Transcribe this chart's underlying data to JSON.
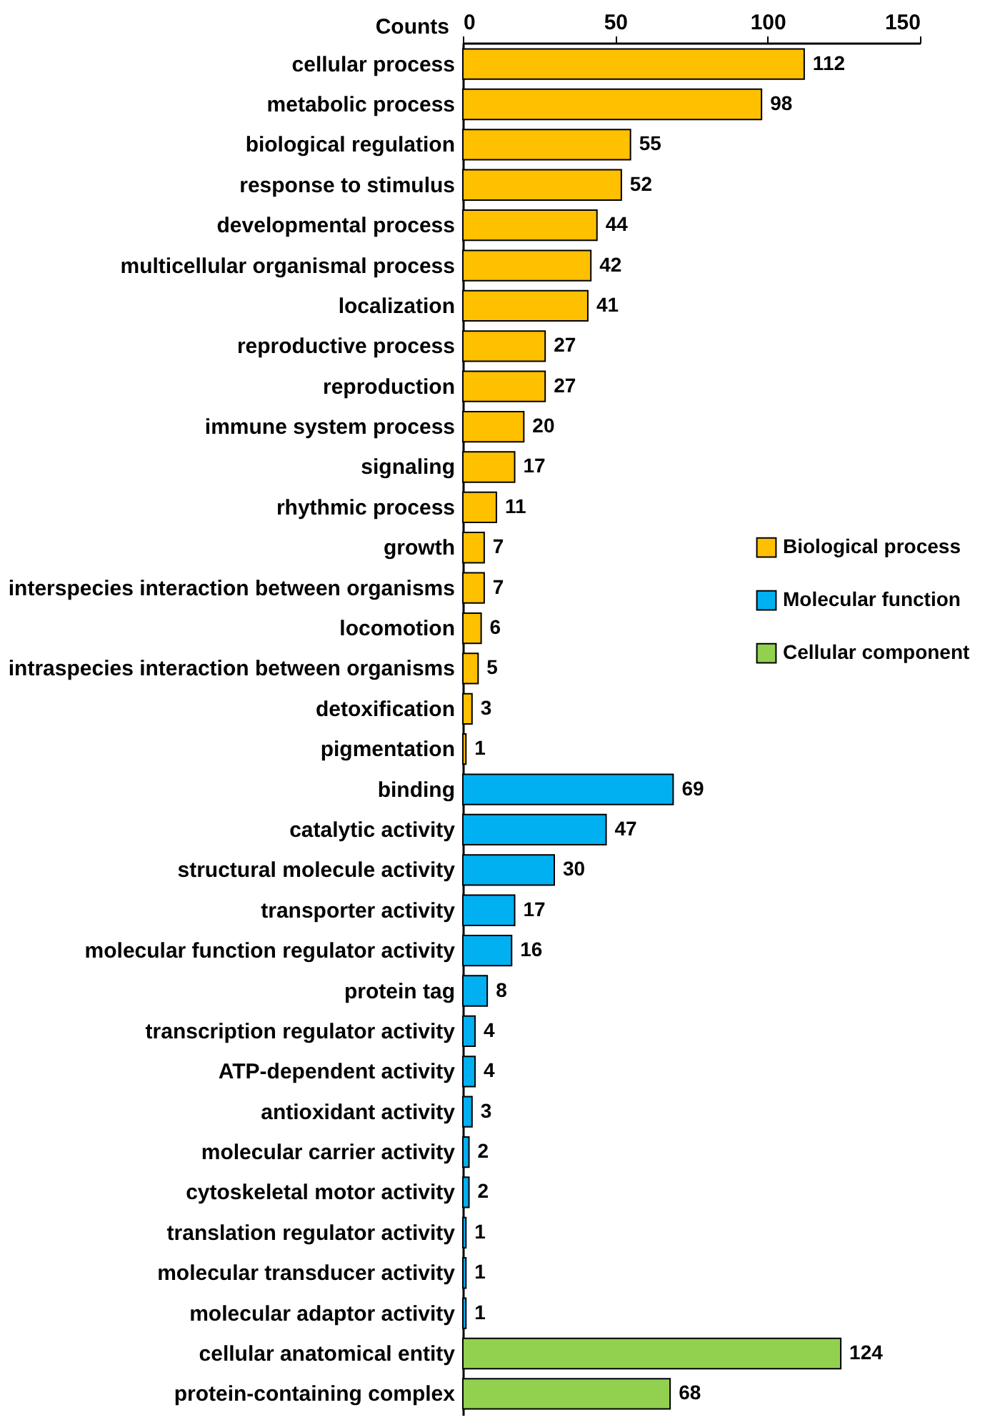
{
  "chart_data": {
    "type": "bar",
    "orientation": "horizontal",
    "xlabel": "Counts",
    "categories": [
      "cellular process",
      "metabolic process",
      "biological regulation",
      "response to stimulus",
      "developmental process",
      "multicellular organismal process",
      "localization",
      "reproductive process",
      "reproduction",
      "immune system process",
      "signaling",
      "rhythmic process",
      "growth",
      "interspecies interaction between organisms",
      "locomotion",
      "intraspecies interaction between organisms",
      "detoxification",
      "pigmentation",
      "binding",
      "catalytic activity",
      "structural molecule activity",
      "transporter activity",
      "molecular function regulator activity",
      "protein tag",
      "transcription regulator activity",
      "ATP-dependent activity",
      "antioxidant activity",
      "molecular carrier activity",
      "cytoskeletal motor activity",
      "translation regulator activity",
      "molecular transducer activity",
      "molecular adaptor activity",
      "cellular anatomical entity",
      "protein-containing complex"
    ],
    "series": [
      {
        "name": "Biological process",
        "color": "#ffc000",
        "values": [
          112,
          98,
          55,
          52,
          44,
          42,
          41,
          27,
          27,
          20,
          17,
          11,
          7,
          7,
          6,
          5,
          3,
          1,
          null,
          null,
          null,
          null,
          null,
          null,
          null,
          null,
          null,
          null,
          null,
          null,
          null,
          null,
          null,
          null
        ]
      },
      {
        "name": "Molecular function",
        "color": "#00b0f0",
        "values": [
          null,
          null,
          null,
          null,
          null,
          null,
          null,
          null,
          null,
          null,
          null,
          null,
          null,
          null,
          null,
          null,
          null,
          null,
          69,
          47,
          30,
          17,
          16,
          8,
          4,
          4,
          3,
          2,
          2,
          1,
          1,
          1,
          null,
          null
        ]
      },
      {
        "name": "Cellular component",
        "color": "#92d050",
        "values": [
          null,
          null,
          null,
          null,
          null,
          null,
          null,
          null,
          null,
          null,
          null,
          null,
          null,
          null,
          null,
          null,
          null,
          null,
          null,
          null,
          null,
          null,
          null,
          null,
          null,
          null,
          null,
          null,
          null,
          null,
          null,
          null,
          124,
          68
        ]
      }
    ],
    "xlim": [
      0,
      150
    ],
    "xticks": [
      0,
      50,
      100,
      150
    ],
    "data_labels": true,
    "legend": "right",
    "grid": false
  }
}
